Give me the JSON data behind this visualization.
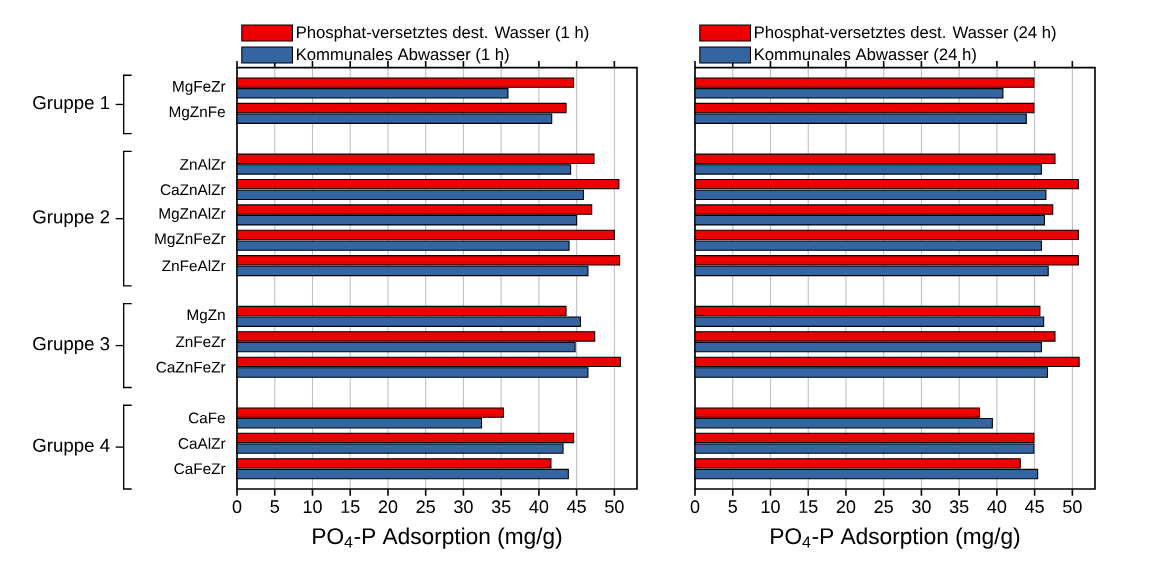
{
  "chart_data": [
    {
      "type": "bar",
      "orientation": "horizontal",
      "grid": "x",
      "legend": "top",
      "categories": [
        "MgFeZr",
        "MgZnFe",
        null,
        "ZnAlZr",
        "CaZnAlZr",
        "MgZnAlZr",
        "MgZnFeZr",
        "ZnFeAlZr",
        null,
        "MgZn",
        "ZnFeZr",
        "CaZnFeZr",
        null,
        "CaFe",
        "CaAlZr",
        "CaFeZr"
      ],
      "series": [
        {
          "name": "Phosphat-versetztes dest. Wasser (1 h)",
          "color": "#ee0000",
          "values": [
            44.6,
            43.6,
            null,
            47.3,
            50.6,
            47.0,
            50.0,
            50.7,
            null,
            43.6,
            47.4,
            50.8,
            null,
            35.3,
            44.6,
            41.6
          ]
        },
        {
          "name": "Kommunales Abwasser (1 h)",
          "color": "#3465a0",
          "values": [
            35.9,
            41.7,
            null,
            44.2,
            45.9,
            45.0,
            44.0,
            46.5,
            null,
            45.5,
            44.8,
            46.5,
            null,
            32.4,
            43.2,
            43.9
          ]
        }
      ],
      "xlabel": "PO$_{4}$-P Adsorption (mg/g)",
      "xlim": [
        0,
        53
      ],
      "xticks": [
        0,
        5,
        10,
        15,
        20,
        25,
        30,
        35,
        40,
        45,
        50
      ],
      "annotations": [
        "Gruppe 1",
        "Gruppe 2",
        "Gruppe 3",
        "Gruppe 4"
      ]
    },
    {
      "type": "bar",
      "orientation": "horizontal",
      "grid": "x",
      "legend": "top",
      "categories": [
        null,
        null,
        null,
        null,
        null,
        null,
        null,
        null,
        null,
        null,
        null,
        null,
        null,
        null,
        null,
        null
      ],
      "series": [
        {
          "name": "Phosphat-versetztes dest. Wasser (24 h)",
          "color": "#ee0000",
          "values": [
            44.9,
            44.9,
            null,
            47.7,
            50.8,
            47.4,
            50.8,
            50.8,
            null,
            45.7,
            47.7,
            50.9,
            null,
            37.7,
            44.9,
            43.1
          ]
        },
        {
          "name": "Kommunales Abwasser (24 h)",
          "color": "#3465a0",
          "values": [
            40.8,
            43.9,
            null,
            45.9,
            46.5,
            46.3,
            45.9,
            46.8,
            null,
            46.2,
            45.9,
            46.7,
            null,
            39.4,
            44.9,
            45.4
          ]
        }
      ],
      "xlabel": "PO$_{4}$-P Adsorption (mg/g)",
      "xlim": [
        0,
        53
      ],
      "xticks": [
        0,
        5,
        10,
        15,
        20,
        25,
        30,
        35,
        40,
        45,
        50
      ]
    }
  ]
}
